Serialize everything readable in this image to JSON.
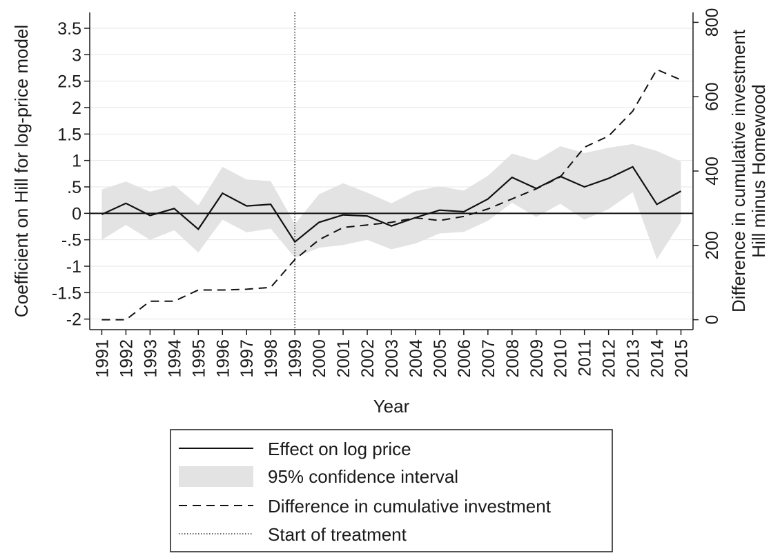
{
  "chart_data": {
    "type": "line",
    "x": [
      1991,
      1992,
      1993,
      1994,
      1995,
      1996,
      1997,
      1998,
      1999,
      2000,
      2001,
      2002,
      2003,
      2004,
      2005,
      2006,
      2007,
      2008,
      2009,
      2010,
      2011,
      2012,
      2013,
      2014,
      2015
    ],
    "series": [
      {
        "name": "Effect on log price",
        "axis": "left",
        "style": "solid",
        "values": [
          -0.02,
          0.19,
          -0.04,
          0.09,
          -0.3,
          0.38,
          0.14,
          0.17,
          -0.54,
          -0.17,
          -0.03,
          -0.05,
          -0.24,
          -0.08,
          0.06,
          0.03,
          0.27,
          0.68,
          0.47,
          0.7,
          0.5,
          0.66,
          0.88,
          0.17,
          0.42
        ]
      },
      {
        "name": "95% confidence interval",
        "axis": "left",
        "style": "band",
        "lower": [
          -0.5,
          -0.22,
          -0.5,
          -0.32,
          -0.74,
          -0.12,
          -0.36,
          -0.29,
          -0.84,
          -0.65,
          -0.6,
          -0.5,
          -0.68,
          -0.57,
          -0.38,
          -0.35,
          -0.14,
          0.2,
          -0.07,
          0.18,
          -0.12,
          0.08,
          0.4,
          -0.87,
          -0.16
        ],
        "upper": [
          0.45,
          0.6,
          0.41,
          0.53,
          0.15,
          0.88,
          0.64,
          0.61,
          -0.2,
          0.36,
          0.57,
          0.39,
          0.19,
          0.42,
          0.51,
          0.43,
          0.71,
          1.13,
          1.0,
          1.27,
          1.14,
          1.24,
          1.31,
          1.18,
          0.98
        ]
      },
      {
        "name": "Difference in cumulative investment",
        "axis": "right",
        "style": "dashed",
        "values": [
          0,
          0,
          50,
          50,
          80,
          80,
          82,
          87,
          162,
          215,
          248,
          255,
          262,
          274,
          267,
          278,
          298,
          325,
          352,
          384,
          464,
          494,
          561,
          673,
          645
        ]
      },
      {
        "name": "Start of treatment",
        "style": "dotted",
        "x_value": 1999
      }
    ],
    "left_axis": {
      "title": "Coefficient on Hill for log-price model",
      "ylim": [
        -2.2,
        3.8
      ],
      "ticks": [
        -2,
        -1.5,
        -1,
        -0.5,
        0,
        0.5,
        1,
        1.5,
        2,
        2.5,
        3,
        3.5
      ],
      "tick_labels": [
        "-2",
        "-1.5",
        "-1",
        "-.5",
        "0",
        ".5",
        "1",
        "1.5",
        "2",
        "2.5",
        "3",
        "3.5"
      ]
    },
    "right_axis": {
      "title_line1": "Difference in cumulative investment",
      "title_line2": "Hill minus Homewood",
      "ylim": [
        -26.7,
        826.7
      ],
      "ticks": [
        0,
        200,
        400,
        600,
        800
      ],
      "tick_labels": [
        "0",
        "200",
        "400",
        "600",
        "800"
      ]
    },
    "xlabel": "Year",
    "xlim": [
      1990.5,
      2015.5
    ],
    "reference_line_y": 0,
    "grid": true,
    "legend_position": "bottom"
  },
  "colors": {
    "line": "#111111",
    "band": "#e3e3e3",
    "grid": "#e6e6e6",
    "axis": "#1a1a1a"
  }
}
